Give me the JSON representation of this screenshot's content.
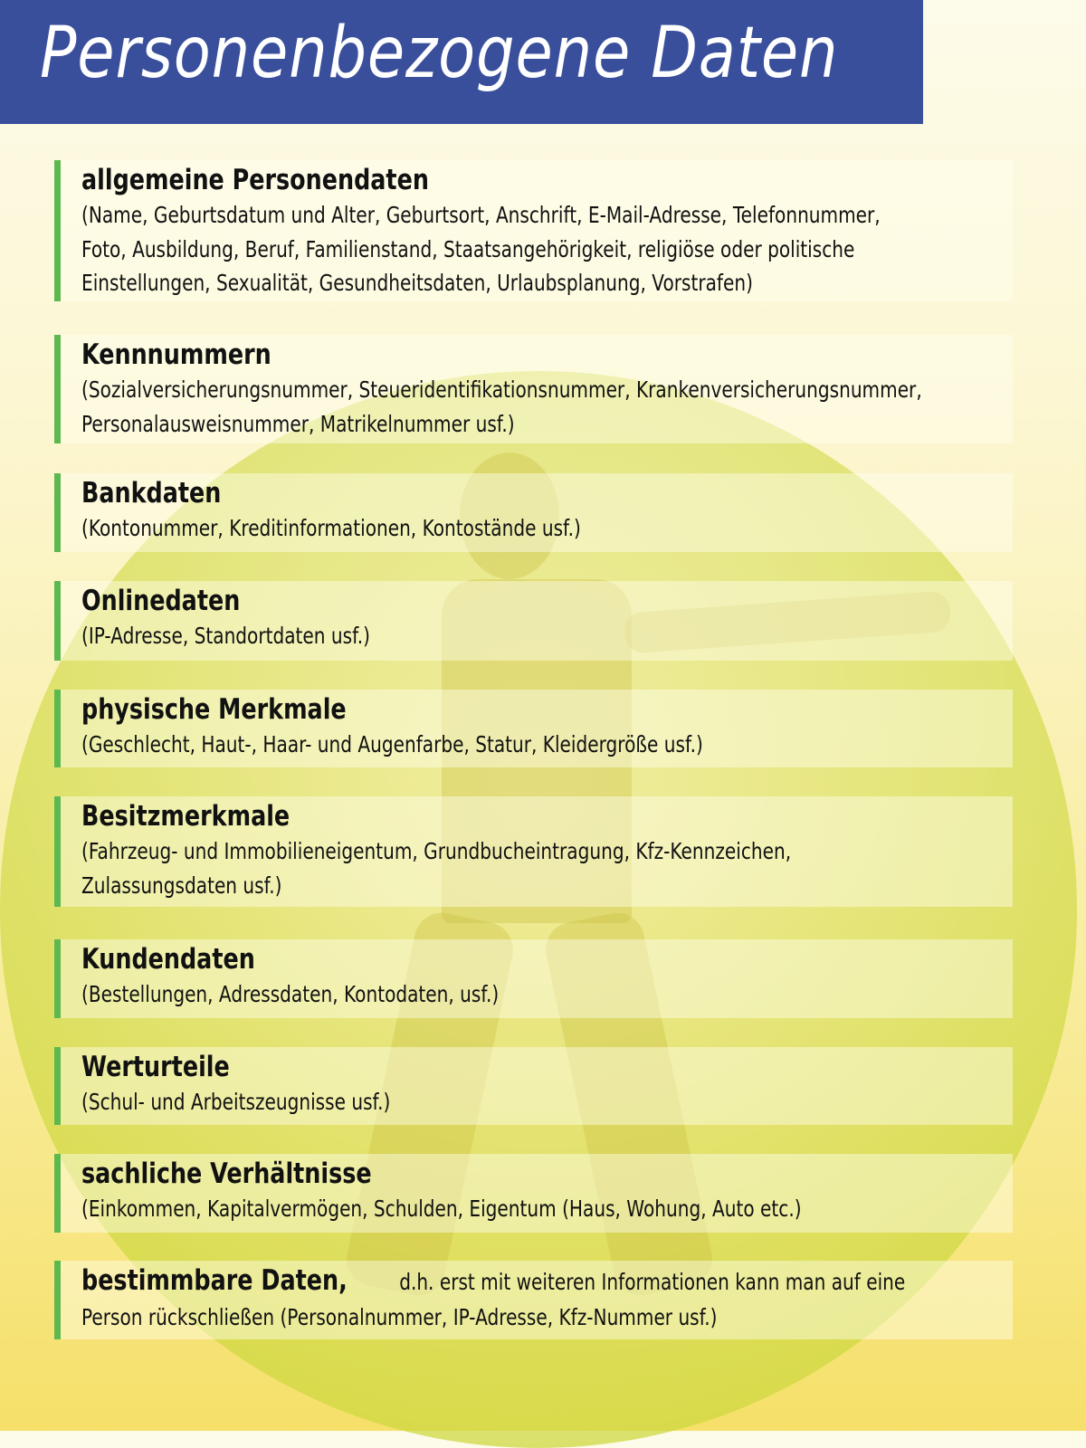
{
  "title": "Personenbezogene Daten",
  "colors": {
    "header": "#3a4f9c",
    "accent_bar": "#5cb84f",
    "background": "#f6e06a"
  },
  "sections": [
    {
      "heading": "allgemeine Personendaten",
      "lines": [
        "(Name, Geburtsdatum und Alter, Geburtsort, Anschrift, E-Mail-Adresse, Telefonnummer,",
        "Foto,  Ausbildung, Beruf, Familienstand, Staatsangehörigkeit, religiöse oder politische",
        "Einstellungen, Sexualität, Gesundheitsdaten, Urlaubsplanung, Vorstrafen)"
      ]
    },
    {
      "heading": "Kennnummern",
      "lines": [
        "(Sozialversicherungsnummer, Steueridentifikationsnummer, Krankenversicherungsnummer,",
        "Personalausweisnummer, Matrikelnummer usf.)"
      ]
    },
    {
      "heading": "Bankdaten",
      "lines": [
        "(Kontonummer, Kreditinformationen, Kontostände usf.)"
      ]
    },
    {
      "heading": "Onlinedaten",
      "lines": [
        "(IP-Adresse, Standortdaten usf.)"
      ]
    },
    {
      "heading": "physische Merkmale",
      "lines": [
        "(Geschlecht, Haut-, Haar- und Augenfarbe, Statur, Kleidergröße usf.)"
      ]
    },
    {
      "heading": "Besitzmerkmale",
      "lines": [
        "(Fahrzeug- und Immobilieneigentum, Grundbucheintragung, Kfz-Kennzeichen,",
        "Zulassungsdaten usf.)"
      ]
    },
    {
      "heading": "Kundendaten",
      "lines": [
        "(Bestellungen, Adressdaten, Kontodaten, usf.)"
      ]
    },
    {
      "heading": "Werturteile",
      "lines": [
        "(Schul- und Arbeitszeugnisse usf.)"
      ]
    },
    {
      "heading": "sachliche Verhältnisse",
      "lines": [
        "(Einkommen, Kapitalvermögen, Schulden, Eigentum (Haus, Wohung, Auto etc.)"
      ]
    },
    {
      "heading": "bestimmbare Daten,",
      "inline": "d.h. erst mit weiteren Informationen kann man auf eine",
      "lines": [
        "Person rückschließen (Personalnummer, IP-Adresse, Kfz-Nummer usf.)"
      ]
    }
  ]
}
